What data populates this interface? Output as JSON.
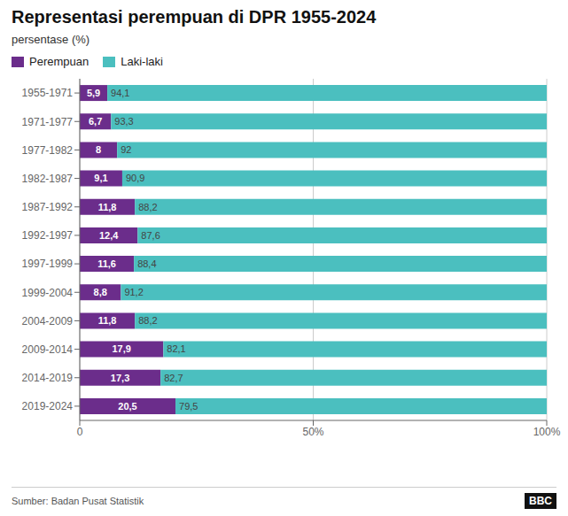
{
  "chart_data": {
    "type": "bar",
    "orientation": "horizontal",
    "stacked": true,
    "title": "Representasi perempuan di DPR 1955-2024",
    "subtitle": "persentase (%)",
    "source": "Sumber: Badan Pusat Statistik",
    "annotations": [
      "BBC"
    ],
    "categories": [
      "1955-1971",
      "1971-1977",
      "1977-1982",
      "1982-1987",
      "1987-1992",
      "1992-1997",
      "1997-1999",
      "1999-2004",
      "2004-2009",
      "2009-2014",
      "2014-2019",
      "2019-2024"
    ],
    "series": [
      {
        "name": "Perempuan",
        "color": "#6b2d8b",
        "values": [
          5.9,
          6.7,
          8.0,
          9.1,
          11.8,
          12.4,
          11.6,
          8.8,
          11.8,
          17.9,
          17.3,
          20.5
        ],
        "value_labels": [
          "5,9",
          "6,7",
          "8",
          "9,1",
          "11,8",
          "12,4",
          "11,6",
          "8,8",
          "11,8",
          "17,9",
          "17,3",
          "20,5"
        ]
      },
      {
        "name": "Laki-laki",
        "color": "#4bbfbf",
        "values": [
          94.1,
          93.3,
          92.0,
          90.9,
          88.2,
          87.6,
          88.4,
          91.2,
          88.2,
          82.1,
          82.7,
          79.5
        ],
        "value_labels": [
          "94,1",
          "93,3",
          "92",
          "90,9",
          "88,2",
          "87,6",
          "88,4",
          "91,2",
          "88,2",
          "82,1",
          "82,7",
          "79,5"
        ]
      }
    ],
    "xlim": [
      0,
      100
    ],
    "xticks": [
      0,
      {
        "value": 50,
        "label": "50%"
      },
      {
        "value": 100,
        "label": "100%"
      }
    ],
    "grid": true,
    "legend": "top",
    "data_labels": true
  }
}
